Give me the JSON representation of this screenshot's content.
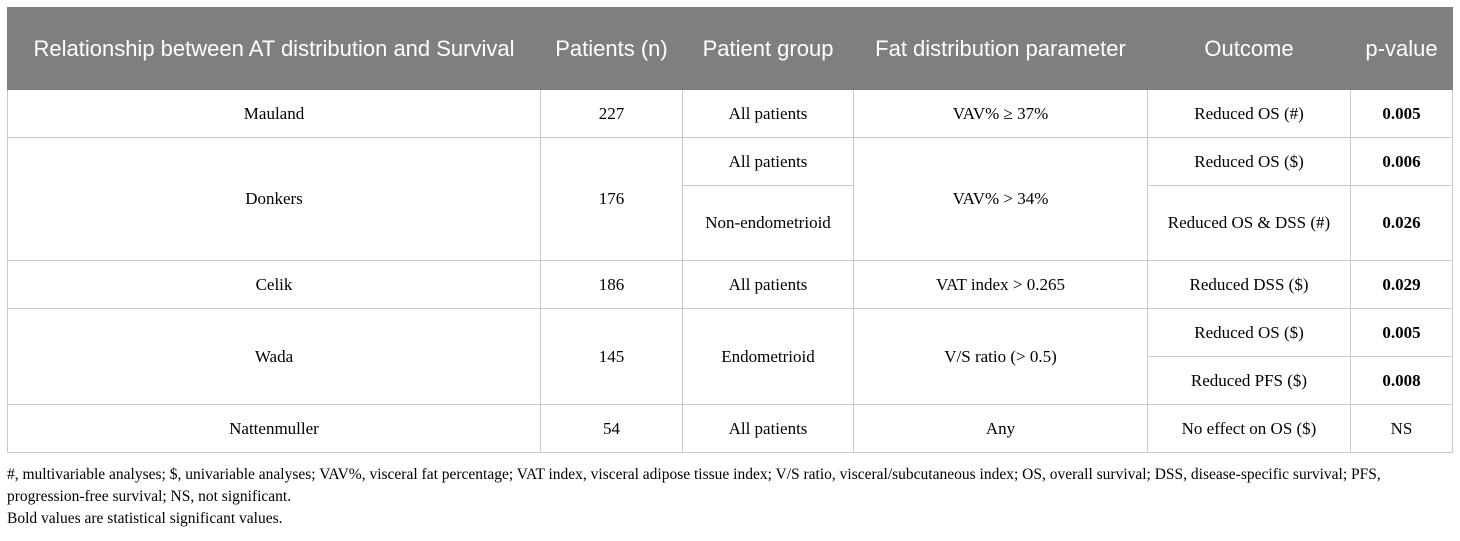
{
  "table": {
    "header": [
      "Relationship between AT distribution and Survival",
      "Patients (n)",
      "Patient group",
      "Fat distribution parameter",
      "Outcome",
      "p-value"
    ],
    "rows": [
      {
        "study": "Mauland",
        "patients": "227",
        "groups": [
          "All patients"
        ],
        "parameter": "VAV% ≥ 37%",
        "outcomes": [
          {
            "outcome": "Reduced OS (#)",
            "p": "0.005"
          }
        ]
      },
      {
        "study": "Donkers",
        "patients": "176",
        "groups": [
          "All patients",
          "Non-endometrioid"
        ],
        "parameter": "VAV% > 34%",
        "outcomes": [
          {
            "outcome": "Reduced OS ($)",
            "p": "0.006"
          },
          {
            "outcome": "Reduced OS & DSS (#)",
            "p": "0.026"
          }
        ]
      },
      {
        "study": "Celik",
        "patients": "186",
        "groups": [
          "All patients"
        ],
        "parameter": "VAT index > 0.265",
        "outcomes": [
          {
            "outcome": "Reduced DSS ($)",
            "p": "0.029"
          }
        ]
      },
      {
        "study": "Wada",
        "patients": "145",
        "groups": [
          "Endometrioid"
        ],
        "parameter": "V/S ratio (> 0.5)",
        "outcomes": [
          {
            "outcome": "Reduced OS ($)",
            "p": "0.005"
          },
          {
            "outcome": "Reduced PFS ($)",
            "p": "0.008"
          }
        ]
      },
      {
        "study": "Nattenmuller",
        "patients": "54",
        "groups": [
          "All patients"
        ],
        "parameter": "Any",
        "outcomes": [
          {
            "outcome": "No effect on OS ($)",
            "p": "NS"
          }
        ]
      }
    ]
  },
  "footnotes": [
    "#, multivariable analyses; $, univariable analyses; VAV%, visceral fat percentage; VAT index, visceral adipose tissue index; V/S ratio, visceral/subcutaneous index; OS, overall survival; DSS, disease-specific survival; PFS, progression-free survival; NS, not significant.",
    "Bold values are statistical significant values."
  ]
}
